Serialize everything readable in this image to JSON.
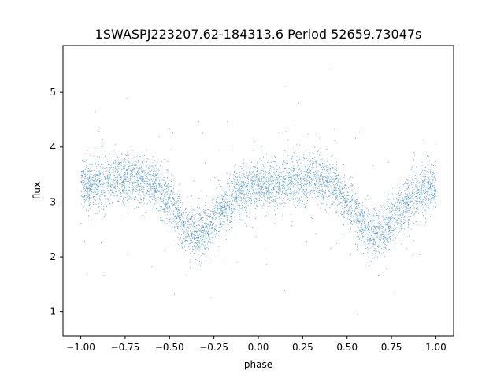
{
  "chart_data": {
    "type": "scatter",
    "title": "1SWASPJ223207.62-184313.6 Period 52659.73047s",
    "xlabel": "phase",
    "ylabel": "flux",
    "xlim": [
      -1.1,
      1.1
    ],
    "ylim": [
      0.55,
      5.85
    ],
    "xticks": [
      -1.0,
      -0.75,
      -0.5,
      -0.25,
      0.0,
      0.25,
      0.5,
      0.75,
      1.0
    ],
    "xtick_labels": [
      "−1.00",
      "−0.75",
      "−0.50",
      "−0.25",
      "0.00",
      "0.25",
      "0.50",
      "0.75",
      "1.00"
    ],
    "yticks": [
      1,
      2,
      3,
      4,
      5
    ],
    "ytick_labels": [
      "1",
      "2",
      "3",
      "4",
      "5"
    ],
    "grid": false,
    "point_color": "#1f77b4",
    "light_curve_profile": {
      "phase": [
        -1.0,
        -0.9,
        -0.8,
        -0.7,
        -0.6,
        -0.5,
        -0.4,
        -0.35,
        -0.3,
        -0.2,
        -0.1,
        0.0,
        0.1,
        0.2,
        0.3,
        0.4,
        0.5,
        0.6,
        0.65,
        0.7,
        0.8,
        0.9,
        1.0
      ],
      "median_flux": [
        3.3,
        3.35,
        3.42,
        3.45,
        3.35,
        3.0,
        2.5,
        2.42,
        2.45,
        2.9,
        3.22,
        3.28,
        3.3,
        3.38,
        3.45,
        3.35,
        3.0,
        2.5,
        2.42,
        2.45,
        2.9,
        3.2,
        3.3
      ],
      "scatter_sigma": 0.22
    }
  }
}
